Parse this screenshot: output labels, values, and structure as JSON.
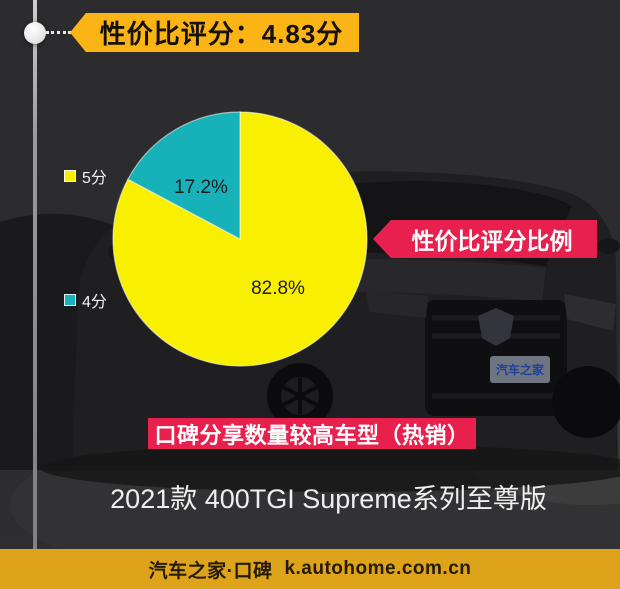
{
  "colors": {
    "score_banner_yellow": "#fbb416",
    "tag_red": "#e7204e",
    "footer_gold": "#dda31a",
    "pie_yellow": "#f8f000",
    "pie_teal": "#17b2b9"
  },
  "header": {
    "score_label": "性价比评分：4.83分"
  },
  "chart_data": {
    "type": "pie",
    "title": "性价比评分比例",
    "start_angle": "top",
    "direction": "clockwise",
    "legend_position": "left",
    "series": [
      {
        "name": "5分",
        "value": 82.8,
        "display": "82.8%",
        "color": "#f8f000"
      },
      {
        "name": "4分",
        "value": 17.2,
        "display": "17.2%",
        "color": "#17b2b9"
      }
    ]
  },
  "hot_banner": {
    "label": "口碑分享数量较高车型（热销）"
  },
  "model": {
    "label": "2021款 400TGI Supreme系列至尊版"
  },
  "footer": {
    "brand": "汽车之家·口碑",
    "url": "k.autohome.com.cn"
  },
  "background_car": {
    "plate_text": "汽车之家"
  }
}
